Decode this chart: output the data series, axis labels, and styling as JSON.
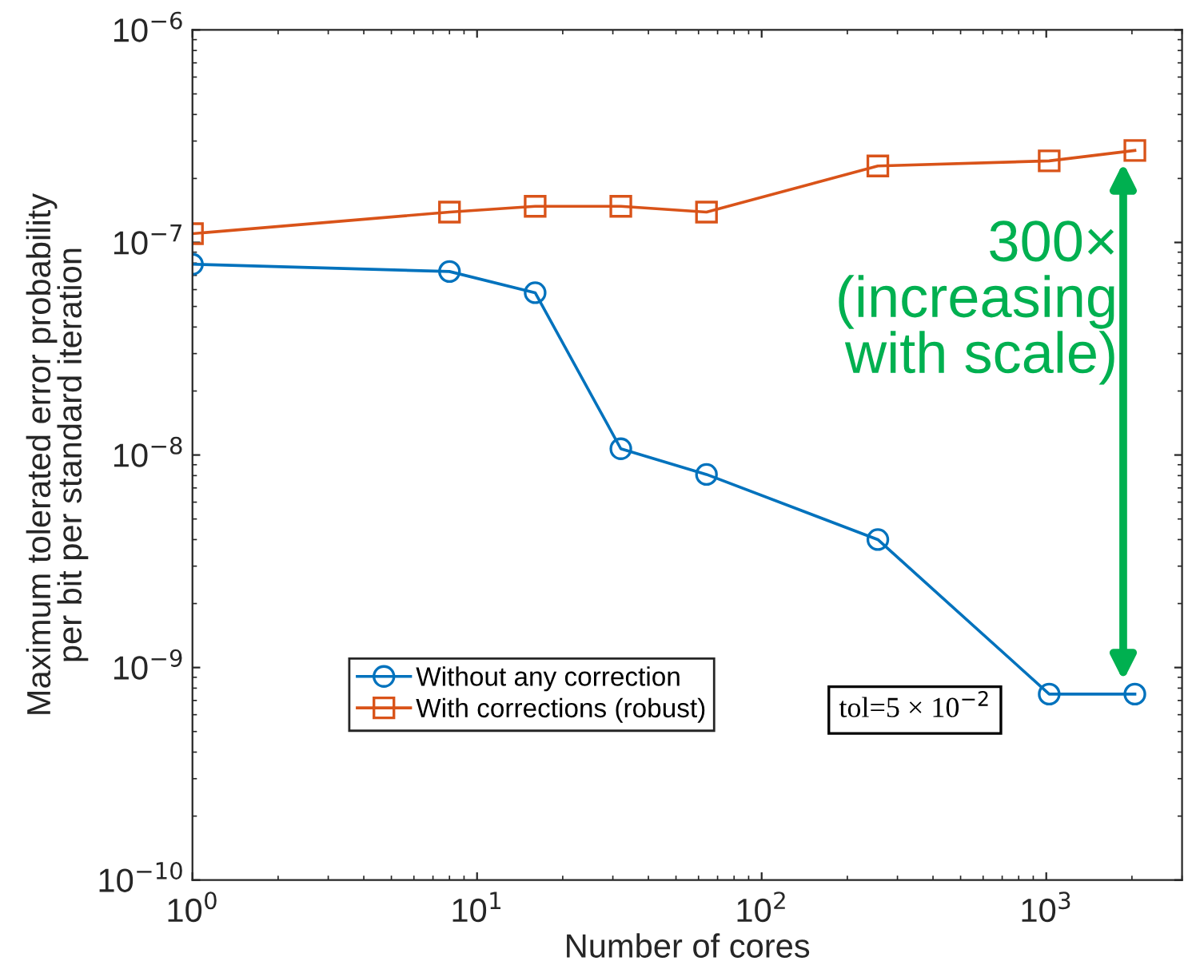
{
  "chart_data": {
    "type": "line",
    "xlabel": "Number of cores",
    "ylabel": "Maximum tolerated error probability\nper bit per standard iteration",
    "x": [
      1,
      8,
      16,
      32,
      64,
      256,
      1024,
      2048
    ],
    "series": [
      {
        "name": "Without any correction",
        "color": "#0072bd",
        "marker": "circle",
        "values": [
          7.9e-08,
          7.3e-08,
          5.8e-08,
          1.07e-08,
          8.1e-09,
          4e-09,
          7.5e-10,
          7.5e-10
        ]
      },
      {
        "name": "With corrections (robust)",
        "color": "#d95319",
        "marker": "square",
        "values": [
          1.1e-07,
          1.39e-07,
          1.48e-07,
          1.48e-07,
          1.39e-07,
          2.29e-07,
          2.42e-07,
          2.71e-07
        ]
      }
    ],
    "log": "xy",
    "xlim": [
      1,
      3000
    ],
    "ylim": [
      1e-10,
      1e-06
    ],
    "xticks": [
      {
        "value": 1,
        "label": "10$^{0}$"
      },
      {
        "value": 10,
        "label": "10$^{1}$"
      },
      {
        "value": 100,
        "label": "10$^{2}$"
      },
      {
        "value": 1000,
        "label": "10$^{3}$"
      }
    ],
    "yticks": [
      {
        "value": 1e-10,
        "label": "10$^{−10}$"
      },
      {
        "value": 1e-09,
        "label": "10$^{−9}$"
      },
      {
        "value": 1e-08,
        "label": "10$^{−8}$"
      },
      {
        "value": 1e-07,
        "label": "10$^{−7}$"
      },
      {
        "value": 1e-06,
        "label": "10$^{−6}$"
      }
    ],
    "legend": "bottom left",
    "grid": false,
    "line_style": "solid",
    "annotations": [
      "300×\n(increasing\nwith scale)",
      "tol=5 × 10$^{−2}$"
    ]
  }
}
